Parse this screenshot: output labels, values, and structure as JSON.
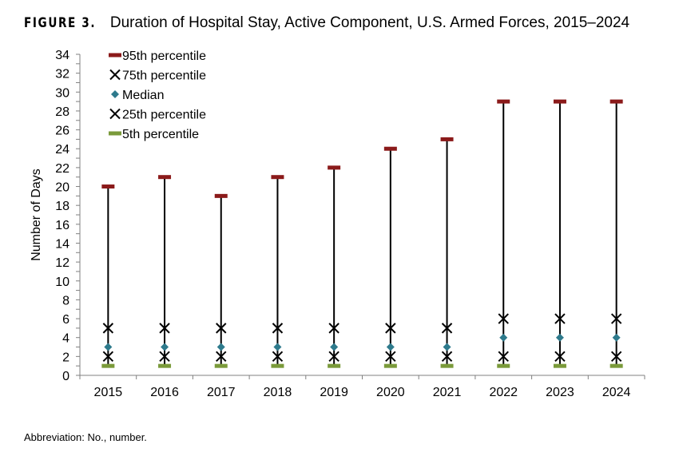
{
  "figure_label": "FIGURE 3.",
  "title": "Duration of Hospital Stay, Active Component, U.S. Armed Forces, 2015–2024",
  "footnote": "Abbreviation: No., number.",
  "chart_data": {
    "type": "scatter",
    "categories": [
      "2015",
      "2016",
      "2017",
      "2018",
      "2019",
      "2020",
      "2021",
      "2022",
      "2023",
      "2024"
    ],
    "ylabel": "Number of Days",
    "xlabel": "",
    "ylim": [
      0,
      34
    ],
    "yticks": [
      0,
      2,
      4,
      6,
      8,
      10,
      12,
      14,
      16,
      18,
      20,
      22,
      24,
      26,
      28,
      30,
      32,
      34
    ],
    "grid": false,
    "legend_position": "top-left",
    "series": [
      {
        "name": "95th percentile",
        "marker": "dash",
        "color": "#8B1A1A",
        "values": [
          20,
          21,
          19,
          21,
          22,
          24,
          25,
          29,
          29,
          29
        ]
      },
      {
        "name": "75th percentile",
        "marker": "x",
        "color": "#000000",
        "values": [
          5,
          5,
          5,
          5,
          5,
          5,
          5,
          6,
          6,
          6
        ]
      },
      {
        "name": "Median",
        "marker": "diamond",
        "color": "#2E7A8C",
        "values": [
          3,
          3,
          3,
          3,
          3,
          3,
          3,
          4,
          4,
          4
        ]
      },
      {
        "name": "25th percentile",
        "marker": "x",
        "color": "#000000",
        "values": [
          2,
          2,
          2,
          2,
          2,
          2,
          2,
          2,
          2,
          2
        ]
      },
      {
        "name": "5th percentile",
        "marker": "dash",
        "color": "#7A9A3A",
        "values": [
          1,
          1,
          1,
          1,
          1,
          1,
          1,
          1,
          1,
          1
        ]
      }
    ]
  }
}
